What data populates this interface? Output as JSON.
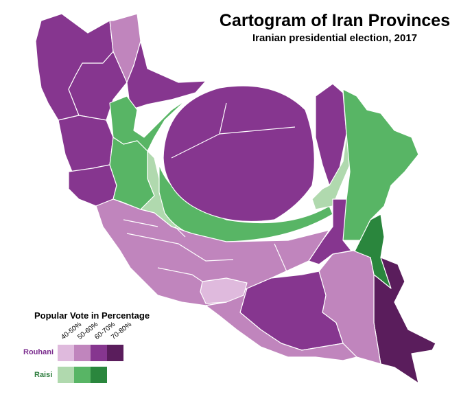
{
  "title": "Cartogram of Iran Provinces",
  "subtitle": "Iranian presidential election, 2017",
  "legend": {
    "title": "Popular Vote in Percentage",
    "bins": [
      "40-50%",
      "50-60%",
      "60-70%",
      "70-80%"
    ],
    "rows": [
      {
        "label": "Rouhani",
        "label_color": "#7b2d8e",
        "colors": [
          "#dfbadd",
          "#c085bd",
          "#86368f",
          "#5a1d5c"
        ]
      },
      {
        "label": "Raisi",
        "label_color": "#2e7d3e",
        "colors": [
          "#b0d9ae",
          "#58b565",
          "#2a863d"
        ]
      }
    ]
  },
  "colors": {
    "rouhani_40_50": "#dfbadd",
    "rouhani_50_60": "#c085bd",
    "rouhani_60_70": "#86368f",
    "rouhani_70_80": "#5a1d5c",
    "raisi_40_50": "#b0d9ae",
    "raisi_50_60": "#58b565",
    "raisi_60_70": "#2a863d",
    "border": "#ffffff"
  }
}
